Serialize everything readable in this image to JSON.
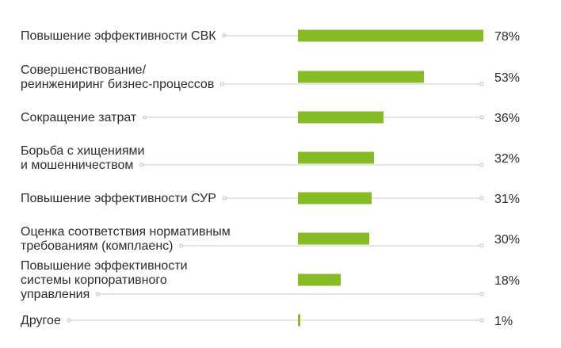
{
  "chart_data": {
    "type": "bar",
    "orientation": "horizontal",
    "categories": [
      [
        "Повышение эффективности СВК"
      ],
      [
        "Совершенствование/",
        "реинжениринг бизнес-процессов"
      ],
      [
        "Сокращение затрат"
      ],
      [
        "Борьба с хищениями",
        "и мошенничеством"
      ],
      [
        "Повышение эффективности СУР"
      ],
      [
        "Оценка соответствия нормативным",
        "требованиям (комплаенс)"
      ],
      [
        "Повышение эффективности",
        "системы корпоративного",
        "управления"
      ],
      [
        "Другое"
      ]
    ],
    "values": [
      78,
      53,
      36,
      32,
      31,
      30,
      18,
      1
    ],
    "value_labels": [
      "78%",
      "53%",
      "36%",
      "32%",
      "31%",
      "30%",
      "18%",
      "1%"
    ],
    "xlim": [
      0,
      78
    ],
    "unit": "%",
    "bar_color": "#86bc25",
    "grid": false,
    "legend": "none"
  }
}
